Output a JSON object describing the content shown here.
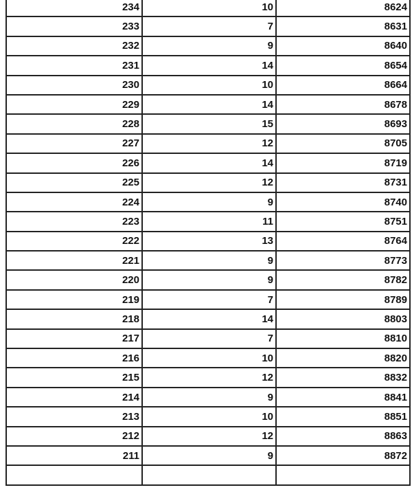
{
  "table": {
    "rows": [
      [
        "234",
        "10",
        "8624"
      ],
      [
        "233",
        "7",
        "8631"
      ],
      [
        "232",
        "9",
        "8640"
      ],
      [
        "231",
        "14",
        "8654"
      ],
      [
        "230",
        "10",
        "8664"
      ],
      [
        "229",
        "14",
        "8678"
      ],
      [
        "228",
        "15",
        "8693"
      ],
      [
        "227",
        "12",
        "8705"
      ],
      [
        "226",
        "14",
        "8719"
      ],
      [
        "225",
        "12",
        "8731"
      ],
      [
        "224",
        "9",
        "8740"
      ],
      [
        "223",
        "11",
        "8751"
      ],
      [
        "222",
        "13",
        "8764"
      ],
      [
        "221",
        "9",
        "8773"
      ],
      [
        "220",
        "9",
        "8782"
      ],
      [
        "219",
        "7",
        "8789"
      ],
      [
        "218",
        "14",
        "8803"
      ],
      [
        "217",
        "7",
        "8810"
      ],
      [
        "216",
        "10",
        "8820"
      ],
      [
        "215",
        "12",
        "8832"
      ],
      [
        "214",
        "9",
        "8841"
      ],
      [
        "213",
        "10",
        "8851"
      ],
      [
        "212",
        "12",
        "8863"
      ],
      [
        "211",
        "9",
        "8872"
      ]
    ]
  }
}
